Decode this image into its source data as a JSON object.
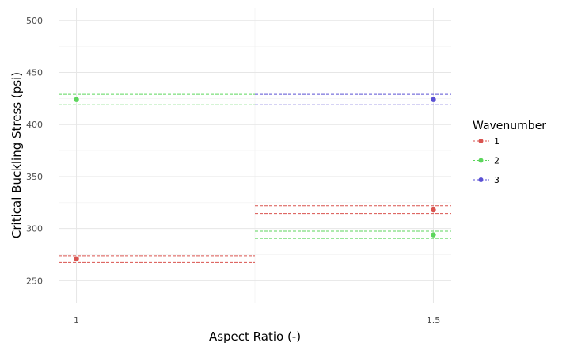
{
  "chart_data": {
    "type": "scatter",
    "title": "",
    "xlabel": "Aspect Ratio (-)",
    "ylabel": "Critical Buckling Stress (psi)",
    "x_ticks": [
      {
        "value": 1,
        "label": "1"
      },
      {
        "value": 1.5,
        "label": "1.5"
      }
    ],
    "y_ticks": [
      {
        "value": 250,
        "label": "250"
      },
      {
        "value": 300,
        "label": "300"
      },
      {
        "value": 350,
        "label": "350"
      },
      {
        "value": 400,
        "label": "400"
      },
      {
        "value": 450,
        "label": "450"
      },
      {
        "value": 500,
        "label": "500"
      }
    ],
    "xlim": [
      0.975,
      1.525
    ],
    "ylim": [
      229,
      512
    ],
    "grid": true,
    "legend": {
      "title": "Wavenumber",
      "position": "right"
    },
    "series": [
      {
        "name": "1",
        "color": "#d9534f",
        "points": [
          {
            "x": 1,
            "y": 271
          },
          {
            "x": 1.5,
            "y": 318
          }
        ],
        "bands": [
          {
            "x_start": 0.975,
            "x_end": 1.25,
            "y": [
              274,
              267.5
            ]
          },
          {
            "x_start": 1.25,
            "x_end": 1.525,
            "y": [
              322,
              314.5
            ]
          }
        ]
      },
      {
        "name": "2",
        "color": "#5cd65c",
        "points": [
          {
            "x": 1,
            "y": 424
          },
          {
            "x": 1.5,
            "y": 294
          }
        ],
        "bands": [
          {
            "x_start": 0.975,
            "x_end": 1.25,
            "y": [
              429,
              419
            ]
          },
          {
            "x_start": 1.25,
            "x_end": 1.525,
            "y": [
              297.5,
              290.5
            ]
          }
        ]
      },
      {
        "name": "3",
        "color": "#5a50d4",
        "points": [
          {
            "x": 1.5,
            "y": 424
          }
        ],
        "bands": [
          {
            "x_start": 1.25,
            "x_end": 1.525,
            "y": [
              429,
              419
            ]
          }
        ]
      }
    ]
  }
}
